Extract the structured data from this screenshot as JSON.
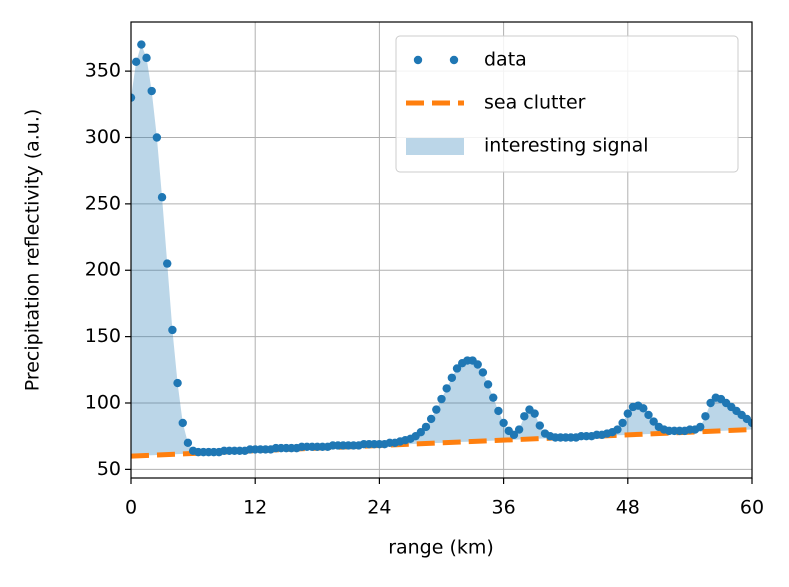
{
  "chart_data": {
    "type": "scatter",
    "xlabel": "range (km)",
    "ylabel": "Precipitation reflectivity (a.u.)",
    "xlim": [
      0,
      60
    ],
    "ylim": [
      43.5,
      387
    ],
    "xticks": [
      0,
      12,
      24,
      36,
      48,
      60
    ],
    "yticks": [
      50,
      100,
      150,
      200,
      250,
      300,
      350
    ],
    "grid": true,
    "legend": "upper right",
    "series": [
      {
        "name": "data",
        "kind": "scatter",
        "color": "#1f77b4",
        "x": [
          0,
          0.5,
          1,
          1.5,
          2,
          2.5,
          3,
          3.5,
          4,
          4.5,
          5,
          5.5,
          6,
          6.5,
          7,
          7.5,
          8,
          8.5,
          9,
          9.5,
          10,
          10.5,
          11,
          11.5,
          12,
          12.5,
          13,
          13.5,
          14,
          14.5,
          15,
          15.5,
          16,
          16.5,
          17,
          17.5,
          18,
          18.5,
          19,
          19.5,
          20,
          20.5,
          21,
          21.5,
          22,
          22.5,
          23,
          23.5,
          24,
          24.5,
          25,
          25.5,
          26,
          26.5,
          27,
          27.5,
          28,
          28.5,
          29,
          29.5,
          30,
          30.5,
          31,
          31.5,
          32,
          32.5,
          33,
          33.5,
          34,
          34.5,
          35,
          35.5,
          36,
          36.5,
          37,
          37.5,
          38,
          38.5,
          39,
          39.5,
          40,
          40.5,
          41,
          41.5,
          42,
          42.5,
          43,
          43.5,
          44,
          44.5,
          45,
          45.5,
          46,
          46.5,
          47,
          47.5,
          48,
          48.5,
          49,
          49.5,
          50,
          50.5,
          51,
          51.5,
          52,
          52.5,
          53,
          53.5,
          54,
          54.5,
          55,
          55.5,
          56,
          56.5,
          57,
          57.5,
          58,
          58.5,
          59,
          59.5,
          60
        ],
        "values": [
          330,
          357,
          370,
          360,
          335,
          300,
          255,
          205,
          155,
          115,
          85,
          70,
          64,
          63,
          63,
          63,
          63,
          63,
          64,
          64,
          64,
          64,
          64,
          65,
          65,
          65,
          65,
          65,
          66,
          66,
          66,
          66,
          66,
          67,
          67,
          67,
          67,
          67,
          67,
          68,
          68,
          68,
          68,
          68,
          68,
          69,
          69,
          69,
          69,
          69,
          70,
          70,
          71,
          72,
          73,
          75,
          78,
          82,
          88,
          95,
          103,
          111,
          119,
          126,
          130,
          132,
          132,
          129,
          123,
          114,
          104,
          94,
          85,
          79,
          76,
          80,
          90,
          95,
          92,
          83,
          77,
          75,
          74,
          74,
          74,
          74,
          74,
          75,
          75,
          75,
          76,
          76,
          77,
          78,
          80,
          85,
          92,
          97,
          98,
          96,
          91,
          86,
          82,
          80,
          79,
          79,
          79,
          79,
          80,
          80,
          82,
          90,
          100,
          104,
          103,
          100,
          97,
          94,
          91,
          88,
          85
        ]
      },
      {
        "name": "sea clutter",
        "kind": "dashed-line",
        "color": "#ff7f0e",
        "x": [
          0,
          60
        ],
        "values": [
          60,
          80
        ]
      },
      {
        "name": "interesting signal",
        "kind": "fill-between",
        "color": "#1f77b4",
        "alpha": 0.3,
        "between": [
          0,
          1
        ]
      }
    ]
  }
}
